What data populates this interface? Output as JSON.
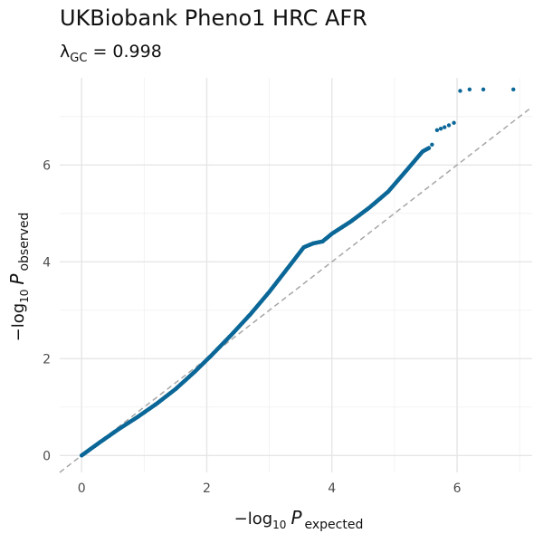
{
  "chart_data": {
    "type": "scatter",
    "title": "UKBiobank Pheno1 HRC AFR",
    "subtitle": {
      "symbol": "λ",
      "subscript": "GC",
      "equals": "=",
      "value": "0.998"
    },
    "xlabel": {
      "prefix": "−log",
      "base": "10",
      "var": "P",
      "sub": "expected"
    },
    "ylabel": {
      "prefix": "−log",
      "base": "10",
      "var": "P",
      "sub": "observed"
    },
    "xlim": [
      -0.35,
      7.2
    ],
    "ylim": [
      -0.35,
      7.8
    ],
    "x_ticks": [
      0,
      2,
      4,
      6
    ],
    "y_ticks": [
      0,
      2,
      4,
      6
    ],
    "x_tick_labels": [
      "0",
      "2",
      "4",
      "6"
    ],
    "y_tick_labels": [
      "0",
      "2",
      "4",
      "6"
    ],
    "grid": true,
    "reference_line": {
      "type": "identity",
      "style": "dashed",
      "color": "#a6a6a6"
    },
    "point_color": "#0b6797",
    "main_curve": [
      [
        0,
        0
      ],
      [
        0.3,
        0.28
      ],
      [
        0.6,
        0.55
      ],
      [
        0.9,
        0.8
      ],
      [
        1.2,
        1.07
      ],
      [
        1.5,
        1.37
      ],
      [
        1.8,
        1.72
      ],
      [
        2.1,
        2.1
      ],
      [
        2.4,
        2.5
      ],
      [
        2.7,
        2.92
      ],
      [
        3.0,
        3.38
      ],
      [
        3.3,
        3.88
      ],
      [
        3.55,
        4.3
      ],
      [
        3.7,
        4.38
      ],
      [
        3.85,
        4.42
      ],
      [
        4.0,
        4.58
      ],
      [
        4.3,
        4.83
      ],
      [
        4.6,
        5.12
      ],
      [
        4.9,
        5.45
      ],
      [
        5.2,
        5.9
      ],
      [
        5.45,
        6.28
      ],
      [
        5.55,
        6.35
      ]
    ],
    "tail_points": [
      [
        5.6,
        6.42
      ],
      [
        5.68,
        6.72
      ],
      [
        5.74,
        6.75
      ],
      [
        5.8,
        6.78
      ],
      [
        5.87,
        6.82
      ],
      [
        5.95,
        6.87
      ],
      [
        6.05,
        7.53
      ],
      [
        6.2,
        7.56
      ],
      [
        6.42,
        7.56
      ],
      [
        6.9,
        7.56
      ]
    ]
  }
}
